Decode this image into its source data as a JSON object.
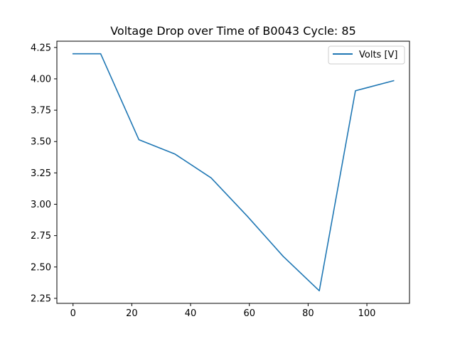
{
  "chart_data": {
    "type": "line",
    "title": "Voltage Drop over Time of B0043 Cycle: 85",
    "xlabel": "",
    "ylabel": "",
    "xlim": [
      -5.5,
      114.5
    ],
    "ylim": [
      2.21,
      4.3
    ],
    "x_ticks": [
      0,
      20,
      40,
      60,
      80,
      100
    ],
    "y_ticks": [
      2.25,
      2.5,
      2.75,
      3.0,
      3.25,
      3.5,
      3.75,
      4.0,
      4.25
    ],
    "y_tick_labels": [
      "2.25",
      "2.50",
      "2.75",
      "3.00",
      "3.25",
      "3.50",
      "3.75",
      "4.00",
      "4.25"
    ],
    "grid": false,
    "legend_position": "top-right",
    "series": [
      {
        "name": "Volts [V]",
        "color": "#1f77b4",
        "x": [
          0,
          9.4,
          22.4,
          34.7,
          47,
          59.3,
          71.5,
          83.8,
          96.1,
          109.1
        ],
        "y": [
          4.2,
          4.2,
          3.515,
          3.4,
          3.21,
          2.905,
          2.585,
          2.31,
          3.905,
          3.985
        ]
      }
    ]
  }
}
